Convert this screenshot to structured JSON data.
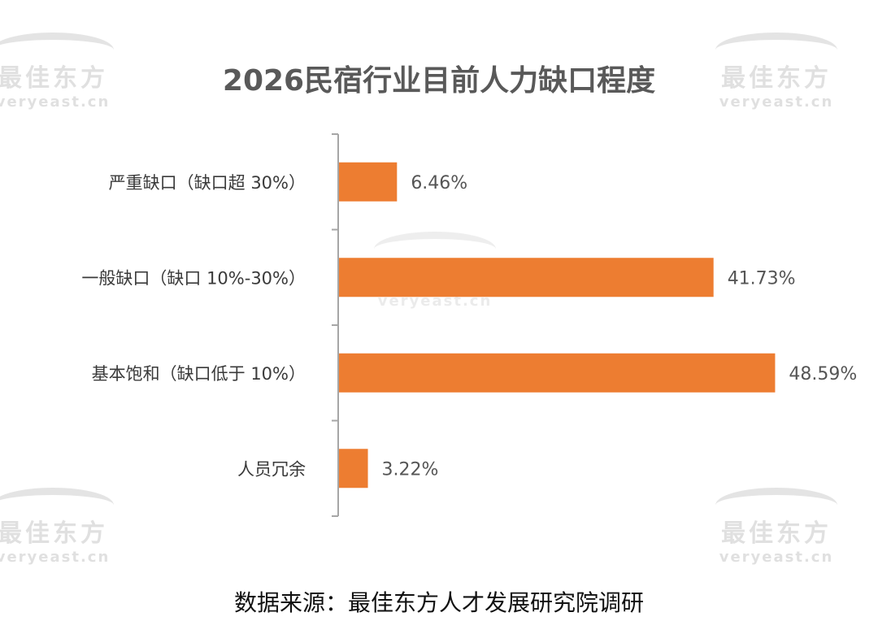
{
  "watermark": {
    "cn": "最佳东方",
    "en": "veryeast.cn"
  },
  "chart_data": {
    "type": "bar",
    "orientation": "horizontal",
    "title": "2026民宿行业目前人力缺口程度",
    "categories": [
      "严重缺口（缺口超 30%）",
      "一般缺口（缺口 10%-30%）",
      "基本饱和（缺口低于 10%）",
      "人员冗余"
    ],
    "values": [
      6.46,
      41.73,
      48.59,
      3.22
    ],
    "value_labels": [
      "6.46%",
      "41.73%",
      "48.59%",
      "3.22%"
    ],
    "unit": "%",
    "xlim": [
      0,
      50
    ],
    "grid": false,
    "bar_color": "#ED7D31",
    "source": "数据来源：最佳东方人才发展研究院调研"
  }
}
